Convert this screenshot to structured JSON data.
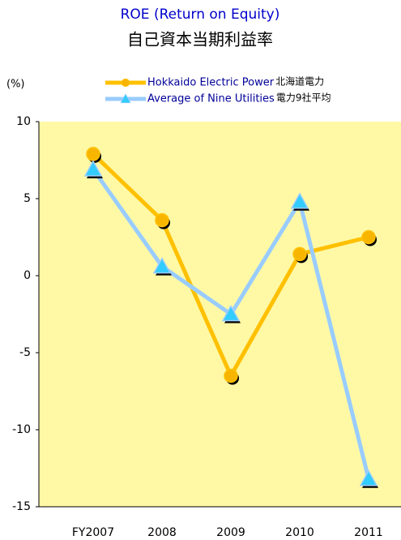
{
  "chart_data": {
    "type": "line",
    "title": "ROE (Return on Equity)",
    "subtitle": "自己資本当期利益率",
    "y_label": "(%)",
    "categories": [
      "FY2007",
      "2008",
      "2009",
      "2010",
      "2011"
    ],
    "series": [
      {
        "name": "Hokkaido Electric Power",
        "name_ja": "北海道電力",
        "color": "#ffc000",
        "marker_color": "#f7b500",
        "marker": "circle",
        "values": [
          7.9,
          3.6,
          -6.5,
          1.4,
          2.5
        ]
      },
      {
        "name": "Average of Nine Utilities",
        "name_ja": "電力9社平均",
        "color": "#99ccff",
        "marker_color": "#33ccff",
        "marker": "triangle",
        "values": [
          6.9,
          0.6,
          -2.5,
          4.8,
          -13.2
        ]
      }
    ],
    "ylim": [
      -15,
      10
    ],
    "yticks": [
      -15,
      -10,
      -5,
      0,
      5,
      10
    ],
    "grid": false,
    "plot_background": "#fff9a6"
  }
}
